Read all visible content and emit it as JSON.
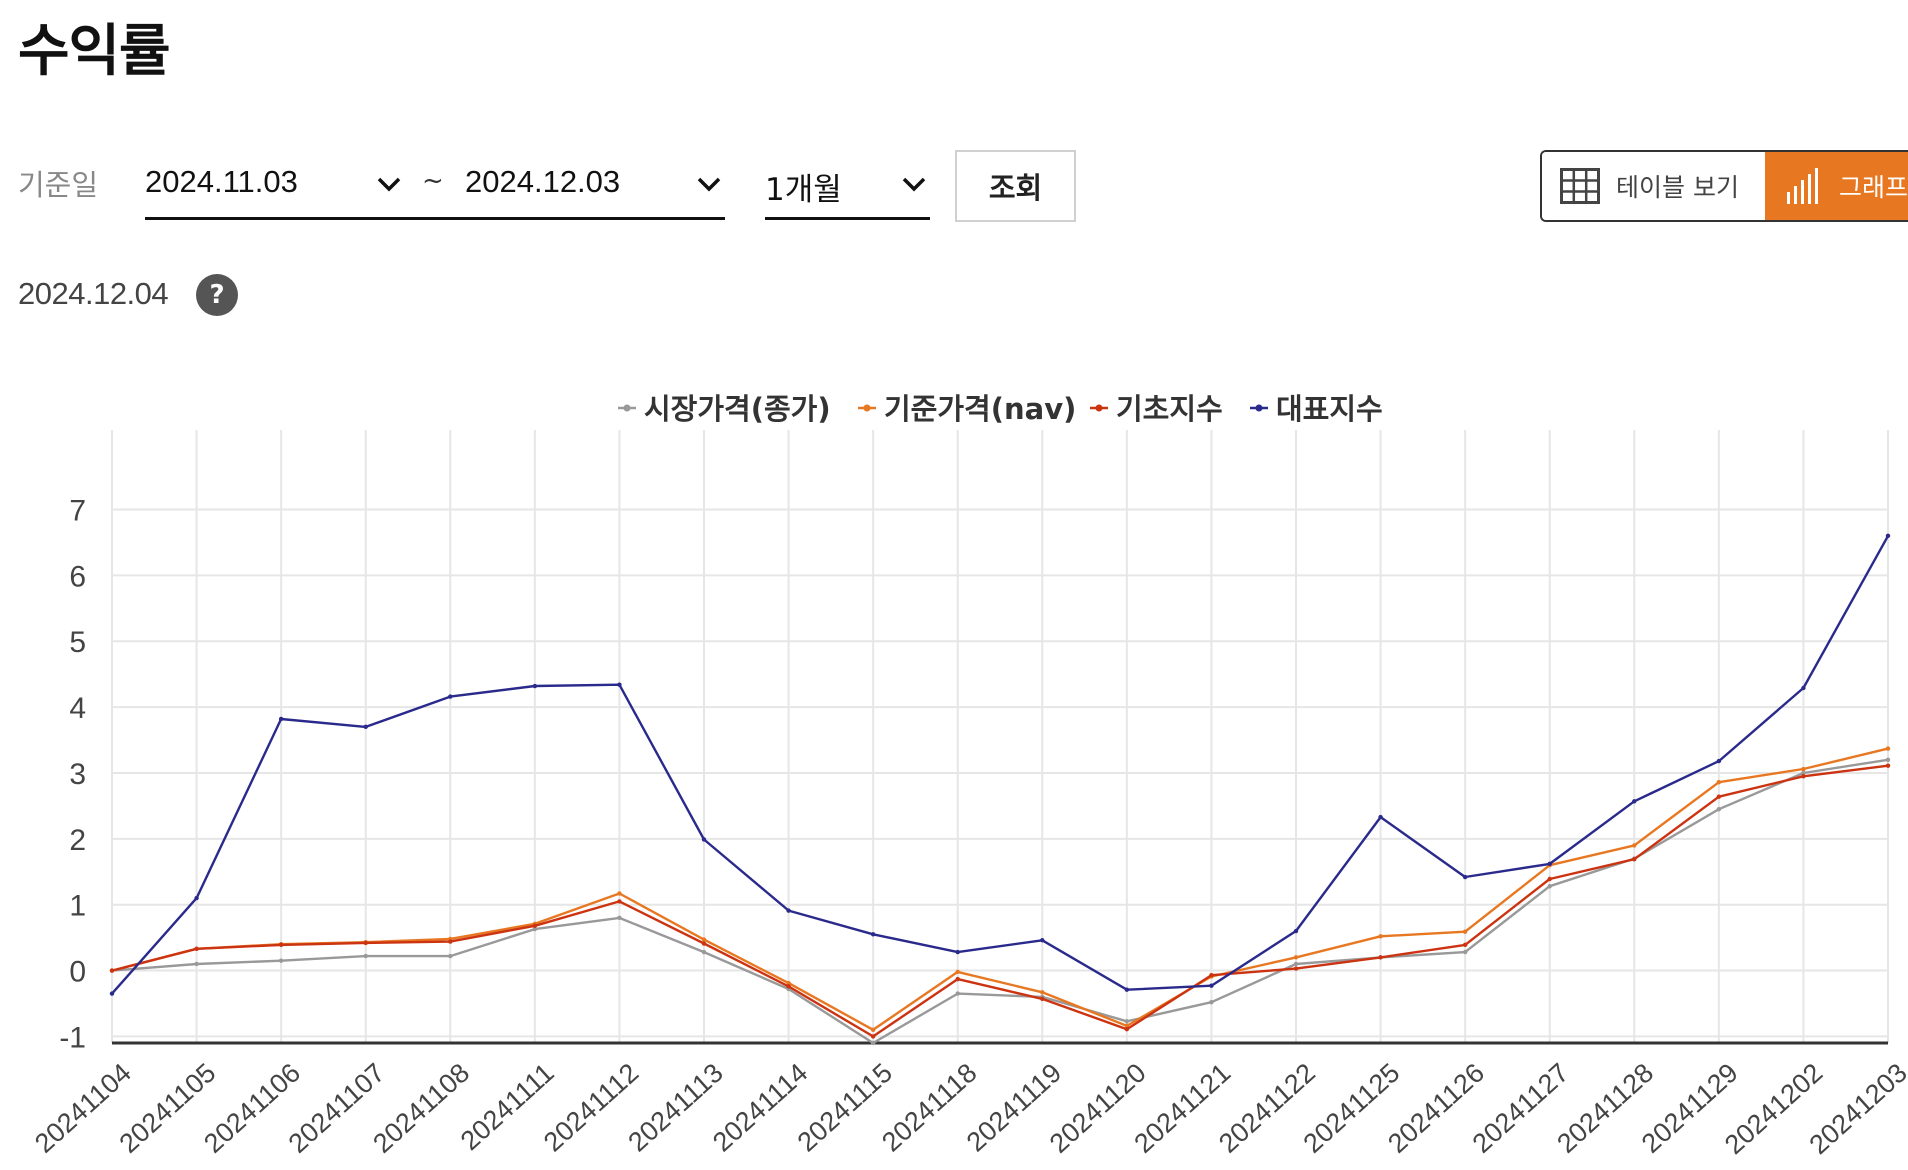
{
  "page": {
    "title": "수익률"
  },
  "filter": {
    "label": "기준일",
    "start_date": "2024.11.03",
    "separator": "~",
    "end_date": "2024.12.03",
    "period": "1개월",
    "search_label": "조회"
  },
  "view_toggle": {
    "table_label": "테이블 보기",
    "graph_label": "그래프",
    "active": "graph",
    "active_color": "#e87722"
  },
  "as_of": {
    "date": "2024.12.04",
    "help": "?"
  },
  "chart_data": {
    "type": "line",
    "categories": [
      "20241104",
      "20241105",
      "20241106",
      "20241107",
      "20241108",
      "20241111",
      "20241112",
      "20241113",
      "20241114",
      "20241115",
      "20241118",
      "20241119",
      "20241120",
      "20241121",
      "20241122",
      "20241125",
      "20241126",
      "20241127",
      "20241128",
      "20241129",
      "20241202",
      "20241203"
    ],
    "series": [
      {
        "name": "시장가격(종가)",
        "color": "#999999",
        "values": [
          0.0,
          0.1,
          0.15,
          0.22,
          0.22,
          0.63,
          0.8,
          0.28,
          -0.28,
          -1.1,
          -0.35,
          -0.4,
          -0.77,
          -0.48,
          0.1,
          0.2,
          0.28,
          1.28,
          1.7,
          2.45,
          3.0,
          3.2
        ]
      },
      {
        "name": "기준가격(nav)",
        "color": "#e87722",
        "values": [
          0.0,
          0.33,
          0.4,
          0.43,
          0.48,
          0.71,
          1.17,
          0.47,
          -0.19,
          -0.9,
          -0.02,
          -0.33,
          -0.84,
          -0.09,
          0.2,
          0.52,
          0.59,
          1.6,
          1.9,
          2.86,
          3.06,
          3.37
        ]
      },
      {
        "name": "기초지수",
        "color": "#cc3311",
        "values": [
          0.0,
          0.33,
          0.39,
          0.42,
          0.44,
          0.68,
          1.05,
          0.41,
          -0.24,
          -1.0,
          -0.13,
          -0.43,
          -0.89,
          -0.07,
          0.03,
          0.2,
          0.39,
          1.39,
          1.69,
          2.64,
          2.95,
          3.11
        ]
      },
      {
        "name": "대표지수",
        "color": "#2a2a8c",
        "values": [
          -0.35,
          1.1,
          3.82,
          3.7,
          4.16,
          4.32,
          4.34,
          1.99,
          0.91,
          0.55,
          0.28,
          0.46,
          -0.29,
          -0.23,
          0.6,
          2.33,
          1.42,
          1.62,
          2.57,
          3.18,
          4.29,
          6.6
        ]
      }
    ],
    "ylim": [
      -1.1,
      7.6
    ],
    "yticks": [
      -1,
      0,
      1,
      2,
      3,
      4,
      5,
      6,
      7
    ],
    "grid": true,
    "legend_position": "top-center"
  }
}
